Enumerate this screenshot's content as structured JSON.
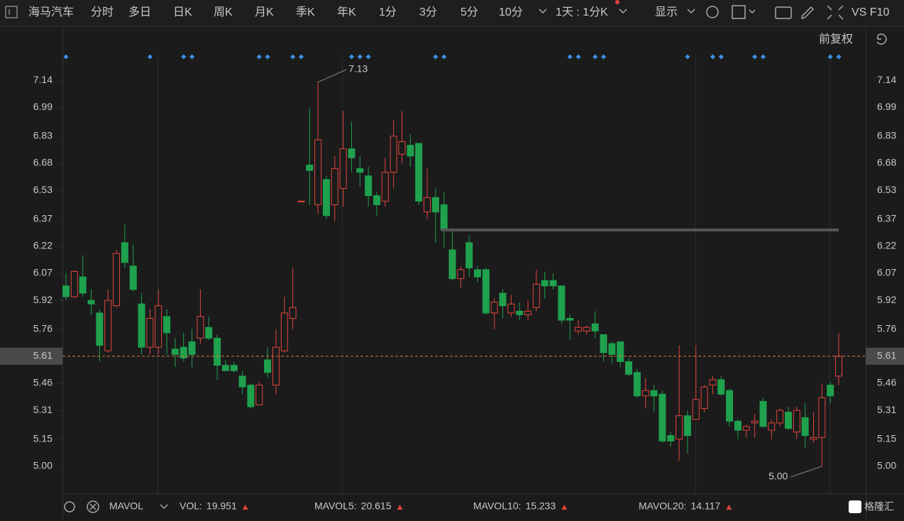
{
  "toolbar": {
    "stock": "海马汽车",
    "tabs": [
      "分时",
      "多日",
      "日K",
      "周K",
      "月K",
      "季K",
      "年K",
      "1分",
      "3分",
      "5分",
      "10分"
    ],
    "active": 2,
    "period": "1天 : 1分K",
    "display": "显示",
    "vs": "VS F10",
    "adjust": "前复权"
  },
  "chart_data": {
    "type": "candlestick",
    "up_color": "#e0453c",
    "down_color": "#1fa14e",
    "open": [
      6.0,
      5.94,
      6.05,
      5.92,
      5.85,
      5.64,
      5.89,
      6.24,
      6.11,
      5.9,
      5.66,
      5.66,
      5.83,
      5.65,
      5.66,
      5.69,
      5.71,
      5.77,
      5.71,
      5.56,
      5.56,
      5.5,
      5.45,
      5.34,
      5.59,
      5.45,
      5.64,
      5.82,
      6.47,
      6.67,
      6.45,
      6.59,
      6.45,
      6.54,
      6.76,
      6.65,
      6.61,
      6.5,
      6.47,
      6.63,
      6.73,
      6.78,
      6.79,
      6.41,
      6.49,
      6.45,
      6.2,
      6.04,
      6.24,
      6.09,
      6.09,
      5.85,
      5.96,
      5.85,
      5.86,
      5.84,
      5.88,
      6.03,
      6.03,
      6.0,
      5.82,
      5.75,
      5.75,
      5.79,
      5.73,
      5.68,
      5.69,
      5.58,
      5.52,
      5.39,
      5.42,
      5.4,
      5.17,
      5.15,
      5.28,
      5.26,
      5.32,
      5.45,
      5.48,
      5.42,
      5.25,
      5.2,
      5.24,
      5.36,
      5.2,
      5.24,
      5.3,
      5.19,
      5.27,
      5.15,
      5.16,
      5.45,
      5.5
    ],
    "high": [
      6.07,
      6.09,
      6.17,
      5.98,
      5.87,
      5.98,
      6.2,
      6.34,
      6.23,
      5.96,
      5.87,
      5.98,
      5.87,
      5.71,
      5.74,
      5.76,
      5.98,
      5.83,
      5.73,
      5.59,
      5.58,
      5.53,
      5.46,
      5.47,
      5.66,
      5.76,
      5.94,
      6.1,
      6.47,
      6.99,
      7.13,
      6.61,
      6.72,
      6.97,
      6.91,
      6.72,
      6.66,
      6.52,
      6.71,
      6.92,
      6.97,
      6.84,
      6.79,
      6.65,
      6.54,
      6.52,
      6.31,
      6.11,
      6.28,
      6.11,
      6.1,
      5.93,
      5.98,
      5.95,
      5.91,
      5.92,
      6.09,
      6.08,
      6.07,
      6.0,
      5.84,
      5.81,
      5.78,
      5.86,
      5.73,
      5.69,
      5.69,
      5.6,
      5.54,
      5.49,
      5.45,
      5.42,
      5.19,
      5.67,
      5.31,
      5.67,
      5.45,
      5.5,
      5.5,
      5.43,
      5.26,
      5.23,
      5.29,
      5.38,
      5.26,
      5.32,
      5.33,
      5.33,
      5.35,
      5.3,
      5.46,
      5.47,
      5.74
    ],
    "low": [
      5.92,
      5.93,
      5.94,
      5.84,
      5.58,
      5.63,
      5.88,
      6.1,
      5.97,
      5.62,
      5.62,
      5.62,
      5.62,
      5.55,
      5.58,
      5.55,
      5.68,
      5.7,
      5.48,
      5.53,
      5.52,
      5.4,
      5.32,
      5.34,
      5.49,
      5.4,
      5.63,
      5.76,
      6.47,
      6.45,
      6.4,
      6.37,
      6.36,
      6.44,
      6.63,
      6.55,
      6.44,
      6.39,
      6.44,
      6.54,
      6.68,
      6.66,
      6.45,
      6.37,
      6.24,
      6.21,
      6.03,
      5.99,
      6.05,
      6.02,
      5.84,
      5.76,
      5.82,
      5.83,
      5.81,
      5.81,
      5.86,
      5.93,
      5.98,
      5.79,
      5.7,
      5.73,
      5.73,
      5.71,
      5.58,
      5.57,
      5.55,
      5.5,
      5.38,
      5.32,
      5.3,
      5.13,
      5.11,
      5.03,
      5.07,
      5.26,
      5.3,
      5.4,
      5.39,
      5.22,
      5.15,
      5.16,
      5.16,
      5.22,
      5.15,
      5.22,
      5.2,
      5.15,
      5.1,
      5.13,
      5.0,
      5.35,
      5.45
    ],
    "close": [
      5.94,
      6.08,
      5.96,
      5.9,
      5.67,
      5.92,
      6.18,
      6.13,
      5.98,
      5.66,
      5.82,
      5.89,
      5.74,
      5.62,
      5.6,
      5.62,
      5.83,
      5.71,
      5.56,
      5.53,
      5.53,
      5.44,
      5.33,
      5.45,
      5.52,
      5.66,
      5.85,
      5.88,
      6.47,
      6.64,
      6.81,
      6.39,
      6.65,
      6.76,
      6.71,
      6.63,
      6.5,
      6.45,
      6.63,
      6.83,
      6.8,
      6.72,
      6.47,
      6.49,
      6.41,
      6.31,
      6.04,
      6.09,
      6.1,
      6.05,
      5.85,
      5.91,
      5.89,
      5.9,
      5.84,
      5.86,
      6.01,
      6.0,
      6.0,
      5.81,
      5.81,
      5.77,
      5.77,
      5.75,
      5.63,
      5.62,
      5.58,
      5.51,
      5.39,
      5.42,
      5.39,
      5.14,
      5.14,
      5.28,
      5.17,
      5.37,
      5.44,
      5.48,
      5.4,
      5.25,
      5.2,
      5.22,
      5.25,
      5.22,
      5.24,
      5.31,
      5.21,
      5.31,
      5.17,
      5.16,
      5.38,
      5.39,
      5.61
    ],
    "events": [
      0,
      10,
      14,
      15,
      23,
      24,
      27,
      28,
      34,
      35,
      36,
      44,
      45,
      60,
      61,
      63,
      64,
      74,
      77,
      78,
      82,
      83,
      91,
      92
    ],
    "ylim": [
      4.85,
      7.29
    ],
    "yticks": [
      7.14,
      6.99,
      6.83,
      6.68,
      6.53,
      6.37,
      6.22,
      6.07,
      5.92,
      5.76,
      5.46,
      5.31,
      5.15,
      {
        "value": 5,
        "label": "5.00"
      }
    ],
    "last_price": 5.61,
    "high_label": 7.13,
    "low_label": {
      "value": 5,
      "label": "5.00"
    },
    "hline": 6.31,
    "indicator_name": "MAVOL",
    "indicators": [
      {
        "label": "VOL:",
        "value": 19.951,
        "color": "#e8506a"
      },
      {
        "label": "MAVOL5:",
        "value": 20.615,
        "color": "#f0a030"
      },
      {
        "label": "MAVOL10:",
        "value": 15.233,
        "color": "#3cb4e6"
      },
      {
        "label": "MAVOL20:",
        "value": 14.117,
        "color": "#e060e0"
      }
    ],
    "logo": "格隆汇"
  }
}
